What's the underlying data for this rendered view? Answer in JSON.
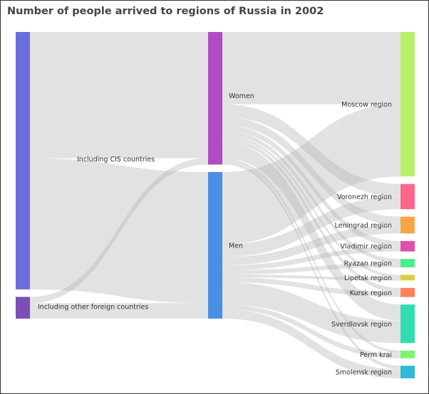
{
  "title": "Number of people arrived to regions of Russia in 2002",
  "chart_data": {
    "type": "sankey",
    "title": "Number of people arrived to regions of Russia in 2002",
    "link_color": "#b4b4b4",
    "nodes": [
      {
        "name": "Including CIS countries",
        "column": 0,
        "color": "#6b6fdc"
      },
      {
        "name": "Including other foreign countries",
        "column": 0,
        "color": "#7a4fb6"
      },
      {
        "name": "Women",
        "column": 1,
        "color": "#b04cc2"
      },
      {
        "name": "Men",
        "column": 1,
        "color": "#4a8fe3"
      },
      {
        "name": "Moscow region",
        "column": 2,
        "color": "#b9f06b"
      },
      {
        "name": "Voronezh region",
        "column": 2,
        "color": "#ff6689"
      },
      {
        "name": "Leningrad region",
        "column": 2,
        "color": "#f9a545"
      },
      {
        "name": "Vladimir region",
        "column": 2,
        "color": "#e04fae"
      },
      {
        "name": "Ryazan region",
        "column": 2,
        "color": "#4cef89"
      },
      {
        "name": "Lipetsk region",
        "column": 2,
        "color": "#d6d245"
      },
      {
        "name": "Kursk region",
        "column": 2,
        "color": "#ff7f5f"
      },
      {
        "name": "Sverdlovsk region",
        "column": 2,
        "color": "#31dcb2"
      },
      {
        "name": "Perm krai",
        "column": 2,
        "color": "#7df56b"
      },
      {
        "name": "Smolensk region",
        "column": 2,
        "color": "#31b9d8"
      }
    ],
    "links": [
      {
        "source": "Including CIS countries",
        "target": "Women",
        "value": 180
      },
      {
        "source": "Including CIS countries",
        "target": "Men",
        "value": 187
      },
      {
        "source": "Including other foreign countries",
        "target": "Women",
        "value": 9
      },
      {
        "source": "Including other foreign countries",
        "target": "Men",
        "value": 22
      },
      {
        "source": "Women",
        "target": "Moscow region",
        "value": 103
      },
      {
        "source": "Women",
        "target": "Voronezh region",
        "value": 18
      },
      {
        "source": "Women",
        "target": "Leningrad region",
        "value": 12
      },
      {
        "source": "Women",
        "target": "Vladimir region",
        "value": 8
      },
      {
        "source": "Women",
        "target": "Ryazan region",
        "value": 6
      },
      {
        "source": "Women",
        "target": "Lipetsk region",
        "value": 4
      },
      {
        "source": "Women",
        "target": "Kursk region",
        "value": 6
      },
      {
        "source": "Women",
        "target": "Sverdlovsk region",
        "value": 23
      },
      {
        "source": "Women",
        "target": "Perm krai",
        "value": 4
      },
      {
        "source": "Women",
        "target": "Smolensk region",
        "value": 5
      },
      {
        "source": "Men",
        "target": "Moscow region",
        "value": 103
      },
      {
        "source": "Men",
        "target": "Voronezh region",
        "value": 18
      },
      {
        "source": "Men",
        "target": "Leningrad region",
        "value": 12
      },
      {
        "source": "Men",
        "target": "Vladimir region",
        "value": 7
      },
      {
        "source": "Men",
        "target": "Ryazan region",
        "value": 6
      },
      {
        "source": "Men",
        "target": "Lipetsk region",
        "value": 4
      },
      {
        "source": "Men",
        "target": "Kursk region",
        "value": 7
      },
      {
        "source": "Men",
        "target": "Sverdlovsk region",
        "value": 32
      },
      {
        "source": "Men",
        "target": "Perm krai",
        "value": 7
      },
      {
        "source": "Men",
        "target": "Smolensk region",
        "value": 13
      }
    ]
  }
}
